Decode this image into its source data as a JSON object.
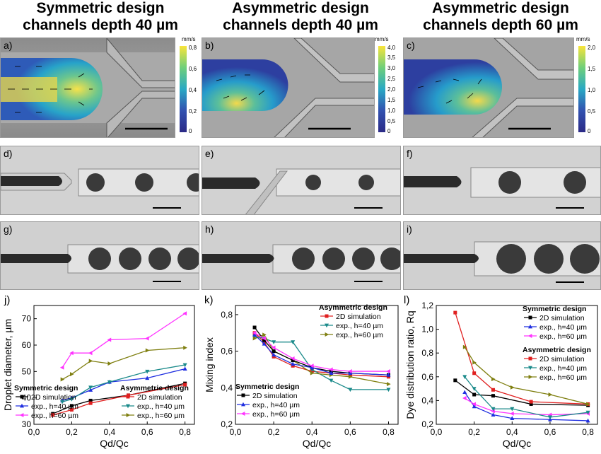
{
  "headers": [
    {
      "line1": "Symmetric design",
      "line2": "channels depth 40 µm"
    },
    {
      "line1": "Asymmetric design",
      "line2": "channels depth 40 µm"
    },
    {
      "line1": "Asymmetric design",
      "line2": "channels depth 60 µm"
    }
  ],
  "panel_labels": {
    "a": "a)",
    "b": "b)",
    "c": "c)",
    "d": "d)",
    "e": "e)",
    "f": "f)",
    "g": "g)",
    "h": "h)",
    "i": "i)",
    "j": "j)",
    "k": "k)",
    "l": "l)"
  },
  "colorbars": [
    {
      "unit": "mm/s",
      "ticks": [
        "0,8",
        "0,6",
        "0,4",
        "0,2",
        "0"
      ]
    },
    {
      "unit": "mm/s",
      "ticks": [
        "4,0",
        "3,5",
        "3,0",
        "2,5",
        "2,0",
        "1,5",
        "1,0",
        "0,5",
        "0"
      ]
    },
    {
      "unit": "mm/s",
      "ticks": [
        "2,0",
        "1,5",
        "1,0",
        "0,5",
        "0"
      ]
    }
  ],
  "colors": {
    "black": "#000000",
    "red": "#e02020",
    "blue": "#1f2ee0",
    "magenta": "#ff33ff",
    "teal": "#1a8a8a",
    "olive": "#7f7f10"
  },
  "chart_data": [
    {
      "type": "line",
      "xlabel": "Qd/Qc",
      "ylabel": "Droplet diameter, µm",
      "xlim": [
        0,
        0.85
      ],
      "ylim": [
        30,
        75
      ],
      "xticks": [
        "0,0",
        "0,2",
        "0,4",
        "0,6",
        "0,8"
      ],
      "yticks": [
        "30",
        "40",
        "50",
        "60",
        "70"
      ],
      "legend_groups": [
        {
          "title": "Symmetric design",
          "items": [
            "2D simulation",
            "exp., h=40 µm",
            "exp., h=60 µm"
          ]
        },
        {
          "title": "Asymmetric design",
          "items": [
            "2D simulation",
            "exp., h=40 µm",
            "exp., h=60 µm"
          ]
        }
      ],
      "series": [
        {
          "name": "2D simulation",
          "group": "Symmetric design",
          "color": "black",
          "x": [
            0.1,
            0.2,
            0.3,
            0.5,
            0.8
          ],
          "y": [
            34,
            37,
            39,
            41,
            45.5
          ]
        },
        {
          "name": "exp., h=40 µm",
          "group": "Symmetric design",
          "color": "blue",
          "x": [
            0.15,
            0.2,
            0.3,
            0.4,
            0.6,
            0.8
          ],
          "y": [
            39,
            40,
            43,
            46,
            47.5,
            51
          ]
        },
        {
          "name": "exp., h=60 µm",
          "group": "Symmetric design",
          "color": "magenta",
          "x": [
            0.15,
            0.2,
            0.3,
            0.4,
            0.6,
            0.8
          ],
          "y": [
            51.5,
            57,
            57,
            62,
            62.5,
            72
          ]
        },
        {
          "name": "2D simulation",
          "group": "Asymmetric design",
          "color": "red",
          "x": [
            0.1,
            0.2,
            0.3,
            0.5,
            0.8
          ],
          "y": [
            33.5,
            35.5,
            38,
            41,
            45
          ]
        },
        {
          "name": "exp., h=40 µm",
          "group": "Asymmetric design",
          "color": "teal",
          "x": [
            0.15,
            0.2,
            0.3,
            0.4,
            0.6,
            0.8
          ],
          "y": [
            38.5,
            39.5,
            44,
            46,
            50,
            52.5
          ]
        },
        {
          "name": "exp., h=60 µm",
          "group": "Asymmetric design",
          "color": "olive",
          "x": [
            0.15,
            0.2,
            0.3,
            0.4,
            0.6,
            0.8
          ],
          "y": [
            47,
            49,
            54,
            53,
            58,
            59
          ]
        }
      ]
    },
    {
      "type": "line",
      "xlabel": "Qd/Qc",
      "ylabel": "Mixing index",
      "xlim": [
        0,
        0.85
      ],
      "ylim": [
        0.2,
        0.85
      ],
      "xticks": [
        "0,0",
        "0,2",
        "0,4",
        "0,6",
        "0,8"
      ],
      "yticks": [
        "0,2",
        "0,4",
        "0,6",
        "0,8"
      ],
      "legend_groups": [
        {
          "title": "Asymmetric design",
          "items": [
            "2D simulation",
            "exp., h=40 µm",
            "exp., h=60 µm"
          ]
        },
        {
          "title": "Symmetric design",
          "items": [
            "2D simulation",
            "exp., h=40 µm",
            "exp., h=60 µm"
          ]
        }
      ],
      "series": [
        {
          "name": "2D simulation",
          "group": "Asymmetric design",
          "color": "red",
          "x": [
            0.1,
            0.15,
            0.2,
            0.3,
            0.4,
            0.5,
            0.6,
            0.8
          ],
          "y": [
            0.7,
            0.65,
            0.57,
            0.52,
            0.49,
            0.48,
            0.47,
            0.46
          ]
        },
        {
          "name": "exp., h=40 µm",
          "group": "Asymmetric design",
          "color": "teal",
          "x": [
            0.1,
            0.15,
            0.2,
            0.3,
            0.4,
            0.5,
            0.6,
            0.8
          ],
          "y": [
            0.68,
            0.67,
            0.65,
            0.65,
            0.5,
            0.44,
            0.39,
            0.39
          ]
        },
        {
          "name": "exp., h=60 µm",
          "group": "Asymmetric design",
          "color": "olive",
          "x": [
            0.1,
            0.15,
            0.2,
            0.3,
            0.4,
            0.5,
            0.6,
            0.8
          ],
          "y": [
            0.67,
            0.69,
            0.6,
            0.55,
            0.48,
            0.47,
            0.46,
            0.42
          ]
        },
        {
          "name": "2D simulation",
          "group": "Symmetric design",
          "color": "black",
          "x": [
            0.1,
            0.15,
            0.2,
            0.3,
            0.4,
            0.5,
            0.6,
            0.8
          ],
          "y": [
            0.73,
            0.66,
            0.6,
            0.55,
            0.51,
            0.49,
            0.48,
            0.47
          ]
        },
        {
          "name": "exp., h=40 µm",
          "group": "Symmetric design",
          "color": "blue",
          "x": [
            0.1,
            0.15,
            0.2,
            0.3,
            0.4,
            0.5,
            0.6,
            0.8
          ],
          "y": [
            0.69,
            0.64,
            0.58,
            0.53,
            0.51,
            0.48,
            0.48,
            0.47
          ]
        },
        {
          "name": "exp., h=60 µm",
          "group": "Symmetric design",
          "color": "magenta",
          "x": [
            0.1,
            0.15,
            0.2,
            0.3,
            0.4,
            0.5,
            0.6,
            0.8
          ],
          "y": [
            0.7,
            0.67,
            0.62,
            0.56,
            0.52,
            0.5,
            0.49,
            0.49
          ]
        }
      ]
    },
    {
      "type": "line",
      "xlabel": "Qd/Qc",
      "ylabel": "Dye distribution ratio, Rq",
      "xlim": [
        0,
        0.85
      ],
      "ylim": [
        0.2,
        1.2
      ],
      "xticks": [
        "0,0",
        "0,2",
        "0,4",
        "0,6",
        "0,8"
      ],
      "yticks": [
        "0,2",
        "0,4",
        "0,6",
        "0,8",
        "1,0",
        "1,2"
      ],
      "legend_groups": [
        {
          "title": "Symmetric design",
          "items": [
            "2D simulation",
            "exp., h=40 µm",
            "exp., h=60 µm"
          ]
        },
        {
          "title": "Asymmetric design",
          "items": [
            "2D simulation",
            "exp., h=40 µm",
            "exp., h=60 µm"
          ]
        }
      ],
      "series": [
        {
          "name": "2D simulation",
          "group": "Symmetric design",
          "color": "black",
          "x": [
            0.1,
            0.2,
            0.3,
            0.5,
            0.8
          ],
          "y": [
            0.57,
            0.45,
            0.44,
            0.37,
            0.36
          ]
        },
        {
          "name": "exp., h=40 µm",
          "group": "Symmetric design",
          "color": "blue",
          "x": [
            0.15,
            0.2,
            0.3,
            0.4,
            0.6,
            0.8
          ],
          "y": [
            0.47,
            0.35,
            0.28,
            0.25,
            0.24,
            0.23
          ]
        },
        {
          "name": "exp., h=60 µm",
          "group": "Symmetric design",
          "color": "magenta",
          "x": [
            0.15,
            0.2,
            0.3,
            0.4,
            0.6,
            0.8
          ],
          "y": [
            0.42,
            0.37,
            0.31,
            0.29,
            0.28,
            0.29
          ]
        },
        {
          "name": "2D simulation",
          "group": "Asymmetric design",
          "color": "red",
          "x": [
            0.1,
            0.2,
            0.3,
            0.5,
            0.8
          ],
          "y": [
            1.14,
            0.63,
            0.49,
            0.39,
            0.37
          ]
        },
        {
          "name": "exp., h=40 µm",
          "group": "Asymmetric design",
          "color": "teal",
          "x": [
            0.15,
            0.2,
            0.3,
            0.4,
            0.6,
            0.8
          ],
          "y": [
            0.6,
            0.5,
            0.33,
            0.33,
            0.26,
            0.3
          ]
        },
        {
          "name": "exp., h=60 µm",
          "group": "Asymmetric design",
          "color": "olive",
          "x": [
            0.15,
            0.2,
            0.3,
            0.4,
            0.6,
            0.8
          ],
          "y": [
            0.85,
            0.72,
            0.58,
            0.51,
            0.45,
            0.37
          ]
        }
      ]
    }
  ]
}
